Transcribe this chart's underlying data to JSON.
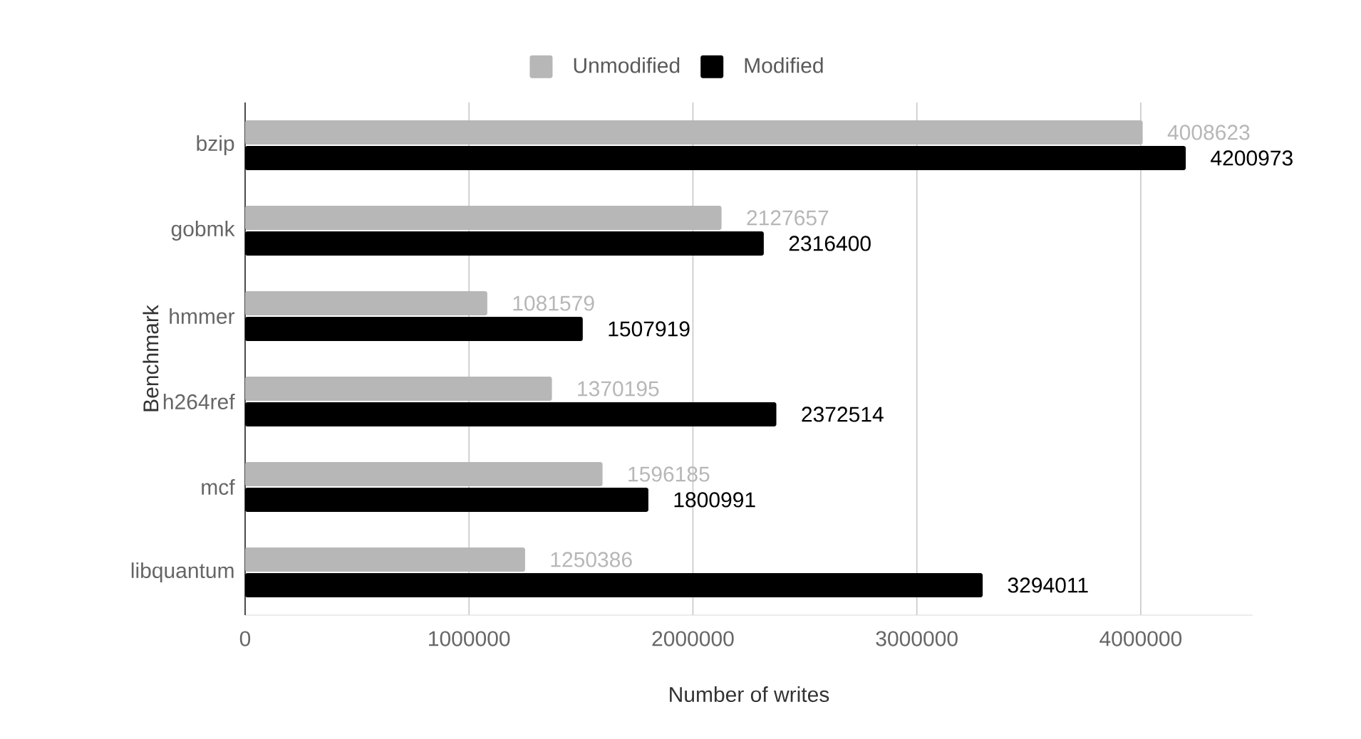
{
  "chart_data": {
    "type": "bar",
    "orientation": "horizontal",
    "xlabel": "Number of writes",
    "ylabel": "Benchmark",
    "categories": [
      "bzip",
      "gobmk",
      "hmmer",
      "h264ref",
      "mcf",
      "libquantum"
    ],
    "series": [
      {
        "name": "Unmodified",
        "color": "#b7b7b7",
        "values": [
          4008623,
          2127657,
          1081579,
          1370195,
          1596185,
          1250386
        ]
      },
      {
        "name": "Modified",
        "color": "#000000",
        "values": [
          4200973,
          2316400,
          1507919,
          2372514,
          1800991,
          3294011
        ]
      }
    ],
    "xlim": [
      0,
      4500000
    ],
    "xticks": [
      0,
      1000000,
      2000000,
      3000000,
      4000000
    ],
    "grid": "x",
    "legend": "top",
    "data_labels": true
  }
}
